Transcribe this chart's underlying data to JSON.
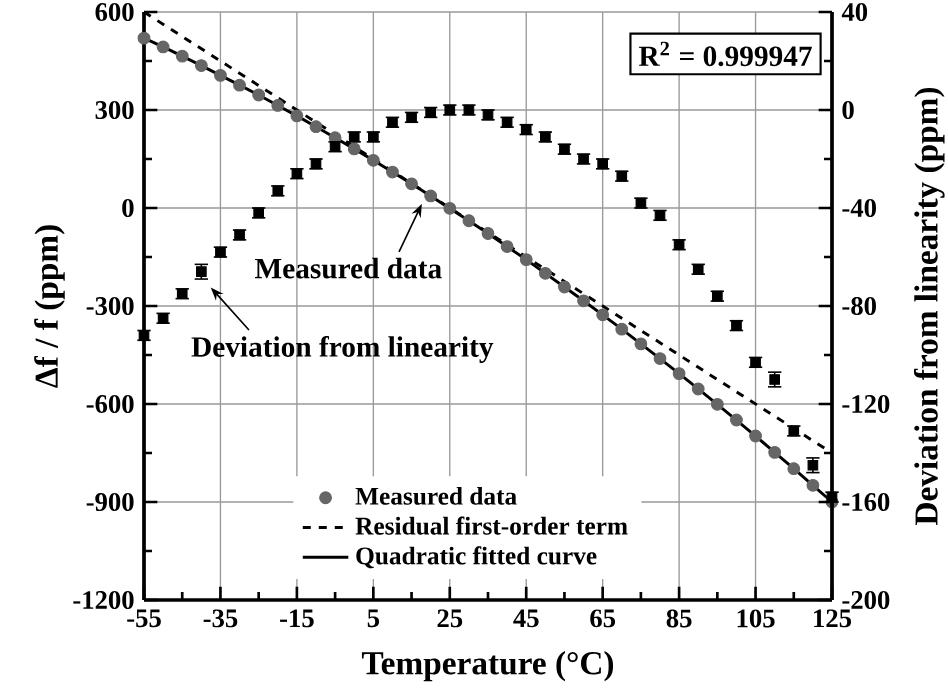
{
  "chart_data": {
    "type": "scatter",
    "xlabel": "Temperature (°C)",
    "ylabel": "Δf / f (ppm)",
    "y2label": "Deviation from linearity (ppm)",
    "x": [
      -55,
      -50,
      -45,
      -40,
      -35,
      -30,
      -25,
      -20,
      -15,
      -10,
      -5,
      0,
      5,
      10,
      15,
      20,
      25,
      30,
      35,
      40,
      45,
      50,
      55,
      60,
      65,
      70,
      75,
      80,
      85,
      90,
      95,
      100,
      105,
      110,
      115,
      120,
      125
    ],
    "xlim": [
      -55,
      125
    ],
    "xticks": [
      -55,
      -35,
      -15,
      5,
      25,
      45,
      65,
      85,
      105,
      125
    ],
    "ylim": [
      -1200,
      600
    ],
    "yticks": [
      -1200,
      -900,
      -600,
      -300,
      0,
      300,
      600
    ],
    "y2lim": [
      -200,
      40
    ],
    "y2ticks": [
      -200,
      -160,
      -120,
      -80,
      -40,
      0,
      40
    ],
    "grid": true,
    "legend": "bottom",
    "annotations": [
      {
        "text": "Measured data",
        "x": 18,
        "y": 20
      },
      {
        "text": "Deviation from linearity",
        "x": -38,
        "y": -237
      },
      "R$^{2}$ = 0.999947"
    ],
    "series": [
      {
        "name": "Measured data",
        "marker": "circle",
        "color": "#666666",
        "values": [
          520,
          493,
          465,
          436,
          406,
          376,
          346,
          314,
          282,
          249,
          215,
          181,
          146,
          110,
          74,
          37,
          -1,
          -39,
          -78,
          -118,
          -158,
          -200,
          -242,
          -284,
          -327,
          -371,
          -416,
          -461,
          -507,
          -554,
          -601,
          -649,
          -698,
          -748,
          -798,
          -849,
          -900
        ]
      },
      {
        "name": "Residual first-order term",
        "type": "line",
        "line_style": "dashed",
        "marker": "none",
        "color": "#000000",
        "x": [
          -55,
          125
        ],
        "values": [
          600,
          -750
        ]
      },
      {
        "name": "Quadratic fitted curve",
        "type": "line",
        "line_style": "solid",
        "marker": "none",
        "color": "#000000",
        "values": [
          520,
          493,
          465,
          436,
          406,
          376,
          346,
          314,
          282,
          249,
          215,
          181,
          146,
          110,
          74,
          37,
          -1,
          -39,
          -78,
          -118,
          -158,
          -200,
          -242,
          -284,
          -327,
          -371,
          -416,
          -461,
          -507,
          -554,
          -601,
          -649,
          -698,
          -748,
          -798,
          -849,
          -900
        ]
      },
      {
        "axis": "y2",
        "marker": "square",
        "color": "#000000",
        "values": [
          -92,
          -85,
          -75,
          -66,
          -58,
          -51,
          -42,
          -33,
          -26,
          -22,
          -15,
          -11,
          -11,
          -5,
          -3,
          -1,
          0,
          0,
          -2,
          -5,
          -8,
          -11,
          -16,
          -20,
          -22,
          -27,
          -38,
          -43,
          -55,
          -65,
          -76,
          -88,
          -103,
          -110,
          -131,
          -145,
          -158
        ],
        "errors": [
          2,
          2,
          2,
          3,
          2,
          2,
          2,
          2,
          2,
          2,
          2,
          2,
          2,
          2,
          2,
          2,
          2,
          2,
          2,
          2,
          2,
          2,
          2,
          2,
          2,
          2,
          2,
          2,
          2,
          2,
          2,
          2,
          2,
          3,
          2,
          3,
          2
        ]
      }
    ]
  }
}
